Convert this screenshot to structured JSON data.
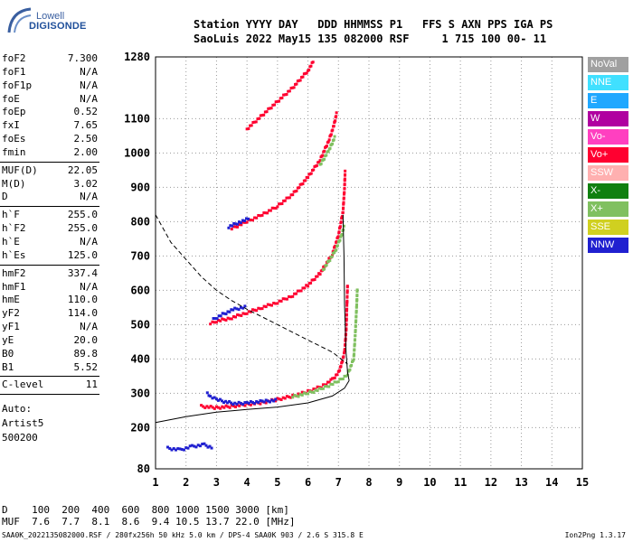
{
  "logo": {
    "line1": "Lowell",
    "line2": "DIGISONDE"
  },
  "header": {
    "line1": "Station YYYY DAY   DDD HHMMSS P1   FFS S AXN PPS IGA PS",
    "line2": "SaoLuis 2022 May15 135 082000 RSF     1 715 100 00- 11"
  },
  "params": {
    "group1": [
      {
        "k": "foF2",
        "v": "7.300"
      },
      {
        "k": "foF1",
        "v": "N/A"
      },
      {
        "k": "foF1p",
        "v": "N/A"
      },
      {
        "k": "foE",
        "v": "N/A"
      },
      {
        "k": "foEp",
        "v": "0.52"
      },
      {
        "k": "fxI",
        "v": "7.65"
      },
      {
        "k": "foEs",
        "v": "2.50"
      },
      {
        "k": "fmin",
        "v": "2.00"
      }
    ],
    "group2": [
      {
        "k": "MUF(D)",
        "v": "22.05"
      },
      {
        "k": "M(D)",
        "v": "3.02"
      },
      {
        "k": "D",
        "v": "N/A"
      }
    ],
    "group3": [
      {
        "k": "h`F",
        "v": "255.0"
      },
      {
        "k": "h`F2",
        "v": "255.0"
      },
      {
        "k": "h`E",
        "v": "N/A"
      },
      {
        "k": "h`Es",
        "v": "125.0"
      }
    ],
    "group4": [
      {
        "k": "hmF2",
        "v": "337.4"
      },
      {
        "k": "hmF1",
        "v": "N/A"
      },
      {
        "k": "hmE",
        "v": "110.0"
      },
      {
        "k": "yF2",
        "v": "114.0"
      },
      {
        "k": "yF1",
        "v": "N/A"
      },
      {
        "k": "yE",
        "v": "20.0"
      },
      {
        "k": "B0",
        "v": "89.8"
      },
      {
        "k": "B1",
        "v": "5.52"
      }
    ],
    "group5": [
      {
        "k": "C-level",
        "v": "11"
      }
    ]
  },
  "auto": {
    "line1": "Auto:",
    "line2": "Artist5",
    "line3": "500200"
  },
  "legend": [
    {
      "label": "NoVal",
      "color": "#a0a0a0"
    },
    {
      "label": "NNE",
      "color": "#40e0ff"
    },
    {
      "label": "E",
      "color": "#20a8ff"
    },
    {
      "label": "W",
      "color": "#b000a0"
    },
    {
      "label": "Vo-",
      "color": "#ff40c0"
    },
    {
      "label": "Vo+",
      "color": "#ff0030"
    },
    {
      "label": "SSW",
      "color": "#ffb0b0"
    },
    {
      "label": "X-",
      "color": "#108010"
    },
    {
      "label": "X+",
      "color": "#80c060"
    },
    {
      "label": "SSE",
      "color": "#d0d020"
    },
    {
      "label": "NNW",
      "color": "#2020d0"
    }
  ],
  "bottom": {
    "line1": "D    100  200  400  600  800 1000 1500 3000 [km]",
    "line2": "MUF  7.6  7.7  8.1  8.6  9.4 10.5 13.7 22.0 [MHz]"
  },
  "footer": {
    "left": "SAA0K_2022135082000.RSF / 280fx256h 50 kHz 5.0 km / DPS-4 SAA0K 903 / 2.6 S 315.8 E",
    "right": "Ion2Png 1.3.17"
  },
  "chart_data": {
    "type": "scatter",
    "xlim": [
      1,
      15
    ],
    "ylim": [
      80,
      1280
    ],
    "x_ticks": [
      "1",
      "2",
      "3",
      "4",
      "5",
      "6",
      "7",
      "8",
      "9",
      "10",
      "11",
      "12",
      "13",
      "14",
      "15"
    ],
    "y_ticks": [
      {
        "value": 80,
        "label": "80"
      },
      {
        "value": 200,
        "label": "200"
      },
      {
        "value": 300,
        "label": "300"
      },
      {
        "value": 400,
        "label": "400"
      },
      {
        "value": 500,
        "label": "500"
      },
      {
        "value": 600,
        "label": "600"
      },
      {
        "value": 700,
        "label": "700"
      },
      {
        "value": 800,
        "label": "800"
      },
      {
        "value": 900,
        "label": "900"
      },
      {
        "value": 1000,
        "label": "1000"
      },
      {
        "value": 1100,
        "label": "1100"
      },
      {
        "value": 1280,
        "label": "1280"
      }
    ],
    "grid": "dotted",
    "traces": [
      {
        "color": "#ff0030",
        "points": [
          [
            2.5,
            262
          ],
          [
            3,
            258
          ],
          [
            3.5,
            262
          ],
          [
            4,
            268
          ],
          [
            4.5,
            273
          ],
          [
            5,
            282
          ],
          [
            5.5,
            292
          ],
          [
            6,
            305
          ],
          [
            6.5,
            322
          ],
          [
            6.8,
            340
          ],
          [
            7,
            360
          ],
          [
            7.1,
            385
          ],
          [
            7.2,
            420
          ],
          [
            7.25,
            480
          ],
          [
            7.28,
            560
          ],
          [
            7.3,
            620
          ]
        ]
      },
      {
        "color": "#80c060",
        "points": [
          [
            5.5,
            290
          ],
          [
            6,
            300
          ],
          [
            6.5,
            315
          ],
          [
            7,
            335
          ],
          [
            7.3,
            355
          ],
          [
            7.5,
            400
          ],
          [
            7.55,
            470
          ],
          [
            7.6,
            560
          ],
          [
            7.62,
            610
          ]
        ]
      },
      {
        "color": "#2020d0",
        "points": [
          [
            2.7,
            300
          ],
          [
            2.8,
            290
          ],
          [
            3,
            282
          ],
          [
            3.3,
            275
          ],
          [
            3.6,
            270
          ],
          [
            4,
            272
          ],
          [
            4.5,
            276
          ],
          [
            5,
            280
          ]
        ]
      },
      {
        "color": "#ff0030",
        "points": [
          [
            2.8,
            505
          ],
          [
            3,
            510
          ],
          [
            3.5,
            520
          ],
          [
            4,
            535
          ],
          [
            4.5,
            550
          ],
          [
            5,
            565
          ],
          [
            5.5,
            585
          ],
          [
            6,
            615
          ],
          [
            6.4,
            650
          ],
          [
            6.8,
            705
          ],
          [
            7,
            760
          ],
          [
            7.15,
            830
          ],
          [
            7.2,
            900
          ],
          [
            7.22,
            950
          ]
        ]
      },
      {
        "color": "#80c060",
        "points": [
          [
            6.5,
            660
          ],
          [
            6.9,
            715
          ],
          [
            7.1,
            760
          ],
          [
            7.2,
            790
          ]
        ]
      },
      {
        "color": "#2020d0",
        "points": [
          [
            2.9,
            515
          ],
          [
            3.2,
            530
          ],
          [
            3.6,
            545
          ],
          [
            4,
            552
          ]
        ]
      },
      {
        "color": "#ff0030",
        "points": [
          [
            3.5,
            780
          ],
          [
            4,
            800
          ],
          [
            4.5,
            820
          ],
          [
            5,
            845
          ],
          [
            5.5,
            880
          ],
          [
            6,
            930
          ],
          [
            6.4,
            980
          ],
          [
            6.7,
            1040
          ],
          [
            6.85,
            1080
          ],
          [
            6.95,
            1120
          ]
        ]
      },
      {
        "color": "#80c060",
        "points": [
          [
            6.4,
            965
          ],
          [
            6.7,
            1010
          ],
          [
            6.9,
            1050
          ]
        ]
      },
      {
        "color": "#2020d0",
        "points": [
          [
            3.4,
            785
          ],
          [
            3.8,
            800
          ],
          [
            4.1,
            810
          ]
        ]
      },
      {
        "color": "#ff0030",
        "points": [
          [
            4,
            1070
          ],
          [
            4.5,
            1110
          ],
          [
            5,
            1150
          ],
          [
            5.5,
            1190
          ],
          [
            6,
            1240
          ],
          [
            6.2,
            1270
          ]
        ]
      },
      {
        "color": "#2020d0",
        "points": [
          [
            1.4,
            140
          ],
          [
            1.8,
            135
          ],
          [
            2.2,
            145
          ],
          [
            2.6,
            150
          ],
          [
            2.9,
            140
          ]
        ]
      }
    ],
    "curves": [
      {
        "style": "solid",
        "points": [
          [
            1,
            215
          ],
          [
            2,
            232
          ],
          [
            3,
            245
          ],
          [
            4,
            253
          ],
          [
            5,
            260
          ],
          [
            6,
            272
          ],
          [
            6.8,
            292
          ],
          [
            7.2,
            315
          ],
          [
            7.35,
            337
          ]
        ]
      },
      {
        "style": "solid",
        "points": [
          [
            7.35,
            337
          ],
          [
            7.3,
            360
          ],
          [
            7.25,
            420
          ],
          [
            7.2,
            560
          ],
          [
            7.18,
            700
          ],
          [
            7.15,
            820
          ]
        ]
      },
      {
        "style": "dashed",
        "points": [
          [
            1,
            820
          ],
          [
            1.5,
            740
          ],
          [
            2,
            690
          ],
          [
            2.5,
            640
          ],
          [
            3,
            600
          ],
          [
            3.5,
            570
          ],
          [
            4,
            545
          ],
          [
            5,
            500
          ],
          [
            6,
            455
          ],
          [
            6.8,
            420
          ],
          [
            7.3,
            385
          ]
        ]
      }
    ]
  }
}
